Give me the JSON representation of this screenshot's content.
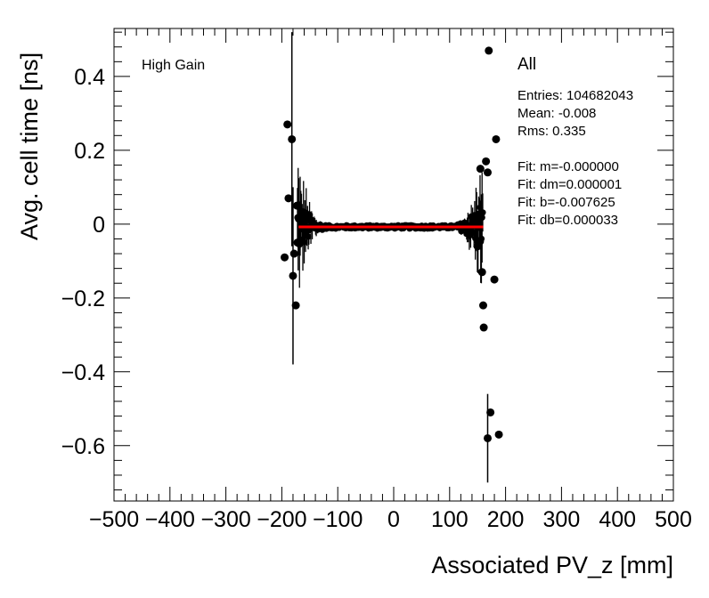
{
  "chart_data": {
    "type": "scatter",
    "xlabel": "Associated PV_z [mm]",
    "ylabel": "Avg. cell time [ns]",
    "xlim": [
      -500,
      500
    ],
    "ylim": [
      -0.75,
      0.53
    ],
    "x_ticks": [
      -500,
      -400,
      -300,
      -200,
      -100,
      0,
      100,
      200,
      300,
      400,
      500
    ],
    "x_tick_labels": [
      "−500",
      "−400",
      "−300",
      "−200",
      "−100",
      "0",
      "100",
      "200",
      "300",
      "400",
      "500"
    ],
    "y_ticks": [
      -0.6,
      -0.4,
      -0.2,
      0,
      0.2,
      0.4
    ],
    "y_tick_labels": [
      "−0.6",
      "−0.4",
      "−0.2",
      "0",
      "0.2",
      "0.4"
    ],
    "grid": false,
    "annotation_left": "High Gain",
    "legend_title": "All",
    "stats": {
      "entries": "Entries: 104682043",
      "mean": "Mean: -0.008",
      "rms": "Rms: 0.335",
      "fit_m": "Fit: m=-0.000000",
      "fit_dm": "Fit: dm=0.000001",
      "fit_b": "Fit: b=-0.007625",
      "fit_db": "Fit: db=0.000033"
    },
    "fit_line": {
      "slope": 0.0,
      "intercept": -0.007625,
      "x_range": [
        -170,
        160
      ],
      "color": "#ff0000"
    },
    "outlier_points": [
      {
        "x": -195,
        "y": -0.09,
        "err": 0.0
      },
      {
        "x": -190,
        "y": 0.27,
        "err": 0.0
      },
      {
        "x": -188,
        "y": 0.07,
        "err": 0.0
      },
      {
        "x": -182,
        "y": 0.23,
        "err": 0.29
      },
      {
        "x": -180,
        "y": -0.14,
        "err": 0.24
      },
      {
        "x": -178,
        "y": -0.08,
        "err": 0.0
      },
      {
        "x": -175,
        "y": -0.22,
        "err": 0.0
      },
      {
        "x": -173,
        "y": 0.05,
        "err": 0.0
      },
      {
        "x": -172,
        "y": -0.05,
        "err": 0.0
      },
      {
        "x": 150,
        "y": -0.06,
        "err": 0.0
      },
      {
        "x": 155,
        "y": 0.15,
        "err": 0.0
      },
      {
        "x": 158,
        "y": -0.13,
        "err": 0.0
      },
      {
        "x": 160,
        "y": -0.22,
        "err": 0.0
      },
      {
        "x": 161,
        "y": -0.28,
        "err": 0.0
      },
      {
        "x": 165,
        "y": 0.17,
        "err": 0.0
      },
      {
        "x": 168,
        "y": 0.14,
        "err": 0.0
      },
      {
        "x": 170,
        "y": 0.47,
        "err": 0.0
      },
      {
        "x": 168,
        "y": -0.58,
        "err": 0.12
      },
      {
        "x": 173,
        "y": -0.51,
        "err": 0.0
      },
      {
        "x": 180,
        "y": -0.15,
        "err": 0.0
      },
      {
        "x": 183,
        "y": 0.23,
        "err": 0.0
      },
      {
        "x": 188,
        "y": -0.57,
        "err": 0.0
      }
    ],
    "point_color": "#000000"
  }
}
